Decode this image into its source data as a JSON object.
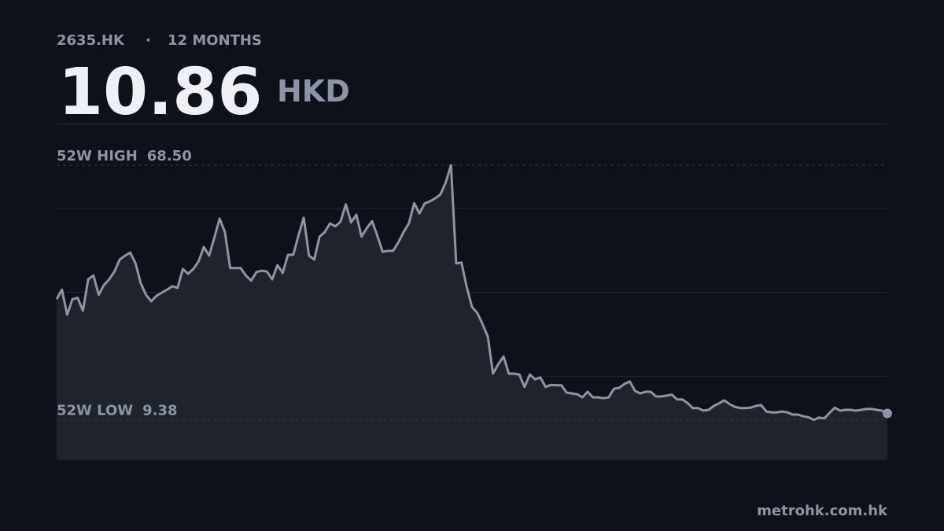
{
  "header": {
    "symbol": "2635.HK",
    "separator": "·",
    "period": "12 MONTHS",
    "price": 10.86,
    "currency": "HKD"
  },
  "chart_data": {
    "type": "line",
    "color": "#8b95a5",
    "fill": "#1f232b",
    "values": [
      37.4,
      39.6,
      33.8,
      37.4,
      37.7,
      34.7,
      42.0,
      42.9,
      38.4,
      40.7,
      42.0,
      43.8,
      46.6,
      47.5,
      48.2,
      45.7,
      41.1,
      38.4,
      36.9,
      38.2,
      38.9,
      39.6,
      40.4,
      40.0,
      44.4,
      43.3,
      44.4,
      46.2,
      49.5,
      47.5,
      51.7,
      56.1,
      53.0,
      44.6,
      44.6,
      44.6,
      42.9,
      41.7,
      43.7,
      44.0,
      43.8,
      42.0,
      45.3,
      43.5,
      47.7,
      47.7,
      52.2,
      56.3,
      47.5,
      46.6,
      51.9,
      53.0,
      55.0,
      54.3,
      55.4,
      59.4,
      55.2,
      57.0,
      51.9,
      53.9,
      55.5,
      52.1,
      48.4,
      48.6,
      48.6,
      50.6,
      53.0,
      55.0,
      59.7,
      57.3,
      59.6,
      60.1,
      60.8,
      61.7,
      64.5,
      68.5,
      45.7,
      45.9,
      40.2,
      35.6,
      34.2,
      31.6,
      28.7,
      20.1,
      22.3,
      24.1,
      20.1,
      20.1,
      19.9,
      17.0,
      19.9,
      18.8,
      19.2,
      17.0,
      17.5,
      17.4,
      17.4,
      15.7,
      15.5,
      15.3,
      14.6,
      15.9,
      14.6,
      14.6,
      14.4,
      14.6,
      16.6,
      16.8,
      17.7,
      18.3,
      16.1,
      15.5,
      15.9,
      15.9,
      14.8,
      14.8,
      15.0,
      15.2,
      14.1,
      14.1,
      13.3,
      12.1,
      12.1,
      11.5,
      11.7,
      12.6,
      13.2,
      13.9,
      13.0,
      12.4,
      12.1,
      12.1,
      12.2,
      12.6,
      12.8,
      11.3,
      11.1,
      11.1,
      11.3,
      11.1,
      10.6,
      10.6,
      10.2,
      10.0,
      9.38,
      9.9,
      9.7,
      11.0,
      12.2,
      11.5,
      11.7,
      11.7,
      11.5,
      11.7,
      11.9,
      11.9,
      11.7,
      11.5,
      10.86
    ],
    "ylim": [
      0,
      78
    ],
    "grid": true,
    "reference_lines": [
      {
        "label": "52W HIGH",
        "value": 68.5,
        "value_label": "68.50"
      },
      {
        "label": "52W LOW",
        "value": 9.38
      }
    ]
  },
  "footer": {
    "source": "metrohk.com.hk"
  }
}
